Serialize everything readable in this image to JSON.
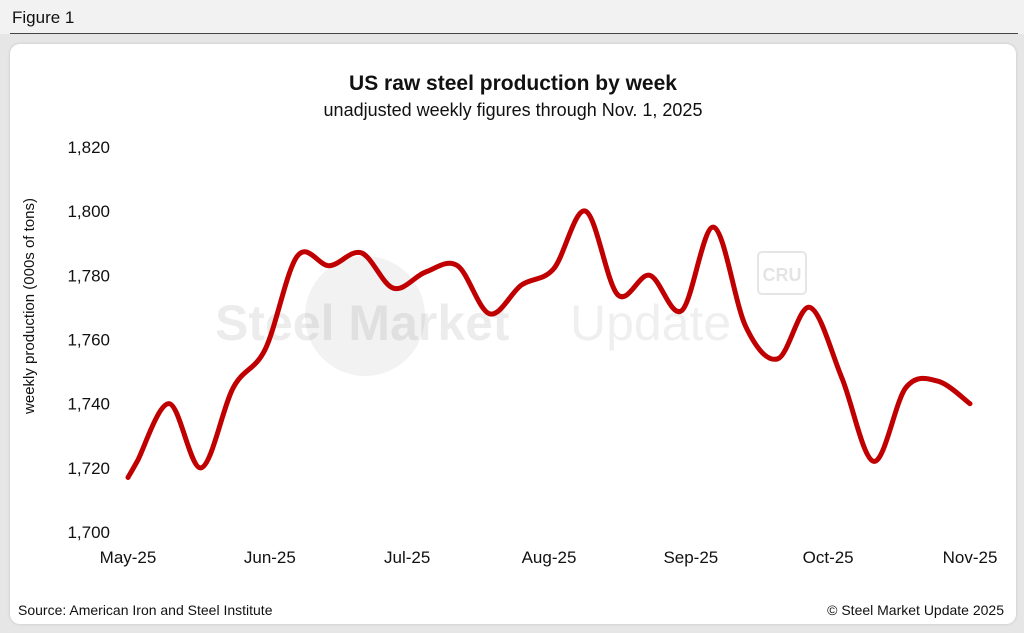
{
  "header": {
    "figure_label": "Figure 1"
  },
  "chart_data": {
    "type": "line",
    "title": "US raw steel production by week",
    "subtitle": "unadjusted weekly figures through Nov. 1, 2025",
    "ylabel": "weekly production (000s of tons)",
    "xlabel": "",
    "ylim": [
      1700,
      1820
    ],
    "yticks": [
      "1,700",
      "1,720",
      "1,740",
      "1,760",
      "1,780",
      "1,800",
      "1,820"
    ],
    "ytick_values": [
      1700,
      1720,
      1740,
      1760,
      1780,
      1800,
      1820
    ],
    "xticks": [
      "May-25",
      "Jun-25",
      "Jul-25",
      "Aug-25",
      "Sep-25",
      "Oct-25",
      "Nov-25"
    ],
    "xtick_dates": [
      "2025-05-01",
      "2025-06-01",
      "2025-07-01",
      "2025-08-01",
      "2025-09-01",
      "2025-10-01",
      "2025-11-01"
    ],
    "series": [
      {
        "name": "US raw steel production",
        "color": "#c00000",
        "dates": [
          "2025-05-01",
          "2025-05-03",
          "2025-05-10",
          "2025-05-17",
          "2025-05-24",
          "2025-05-31",
          "2025-06-07",
          "2025-06-14",
          "2025-06-21",
          "2025-06-28",
          "2025-07-05",
          "2025-07-12",
          "2025-07-19",
          "2025-07-26",
          "2025-08-02",
          "2025-08-09",
          "2025-08-16",
          "2025-08-23",
          "2025-08-30",
          "2025-09-06",
          "2025-09-13",
          "2025-09-20",
          "2025-09-27",
          "2025-10-04",
          "2025-10-11",
          "2025-10-18",
          "2025-10-25",
          "2025-11-01"
        ],
        "values": [
          1717,
          1722,
          1740,
          1720,
          1745,
          1757,
          1786,
          1783,
          1787,
          1776,
          1781,
          1783,
          1768,
          1777,
          1782,
          1800,
          1774,
          1780,
          1769,
          1795,
          1764,
          1754,
          1770,
          1748,
          1722,
          1745,
          1747,
          1740
        ]
      }
    ]
  },
  "watermark": {
    "brand_bold": "Steel Market",
    "brand_light": "Update",
    "badge": "CRU"
  },
  "footer": {
    "source": "Source: American Iron and Steel Institute",
    "copyright": "© Steel Market Update 2025"
  }
}
